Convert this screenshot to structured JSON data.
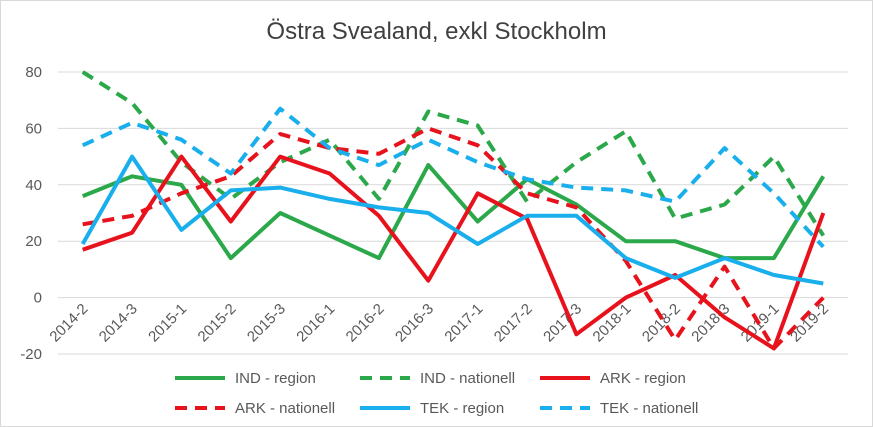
{
  "chart_data": {
    "type": "line",
    "title": "Östra Svealand, exkl Stockholm",
    "xlabel": "",
    "ylabel": "",
    "ylim": [
      -20,
      80
    ],
    "yticks": [
      -20,
      0,
      20,
      40,
      60,
      80
    ],
    "grid": true,
    "legend_position": "bottom",
    "categories": [
      "2014-2",
      "2014-3",
      "2015-1",
      "2015-2",
      "2015-3",
      "2016-1",
      "2016-2",
      "2016-3",
      "2017-1",
      "2017-2",
      "2017-3",
      "2018-1",
      "2018-2",
      "2018-3",
      "2019-1",
      "2019-2"
    ],
    "series": [
      {
        "name": "IND - region",
        "color": "#2aa84a",
        "dash": "solid",
        "values": [
          36,
          43,
          40,
          14,
          30,
          22,
          14,
          47,
          27,
          42,
          33,
          20,
          20,
          14,
          14,
          43
        ]
      },
      {
        "name": "IND - nationell",
        "color": "#2aa84a",
        "dash": "dashed",
        "values": [
          80,
          69,
          48,
          35,
          48,
          56,
          35,
          66,
          61,
          34,
          48,
          59,
          28,
          33,
          50,
          22
        ]
      },
      {
        "name": "ARK - region",
        "color": "#e8121c",
        "dash": "solid",
        "values": [
          17,
          23,
          50,
          27,
          50,
          44,
          29,
          6,
          37,
          28,
          -13,
          0,
          8,
          -7,
          -18,
          30
        ]
      },
      {
        "name": "ARK - nationell",
        "color": "#e8121c",
        "dash": "dashed",
        "values": [
          26,
          29,
          37,
          43,
          58,
          53,
          51,
          60,
          54,
          37,
          32,
          13,
          -15,
          11,
          -18,
          0
        ]
      },
      {
        "name": "TEK - region",
        "color": "#19aeec",
        "dash": "solid",
        "values": [
          19,
          50,
          24,
          38,
          39,
          35,
          32,
          30,
          19,
          29,
          29,
          14,
          7,
          14,
          8,
          5
        ]
      },
      {
        "name": "TEK - nationell",
        "color": "#19aeec",
        "dash": "dashed",
        "values": [
          54,
          62,
          56,
          44,
          67,
          53,
          47,
          56,
          48,
          42,
          39,
          38,
          34,
          53,
          37,
          18
        ]
      }
    ]
  }
}
